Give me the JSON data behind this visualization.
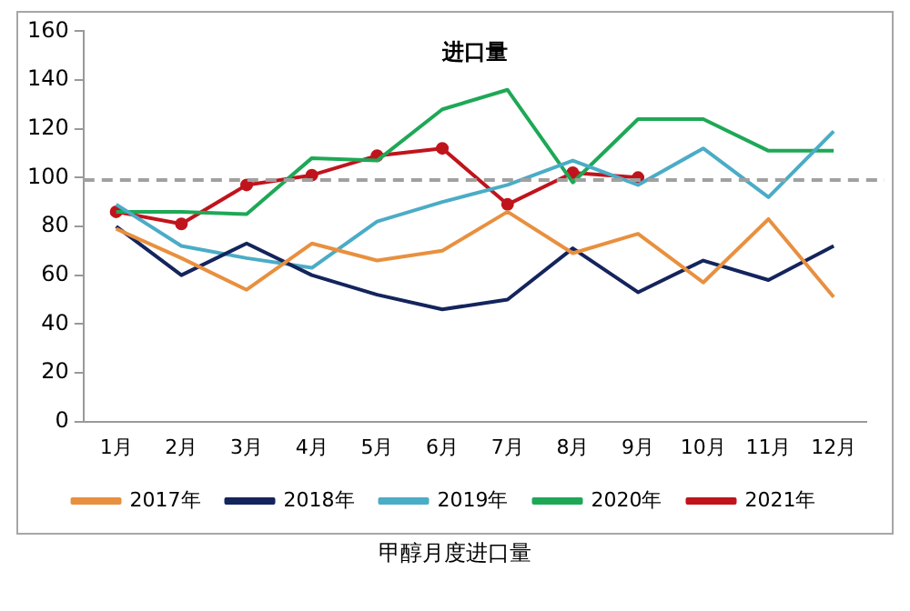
{
  "chart_data": {
    "type": "line",
    "title": "进口量",
    "categories": [
      "1月",
      "2月",
      "3月",
      "4月",
      "5月",
      "6月",
      "7月",
      "8月",
      "9月",
      "10月",
      "11月",
      "12月"
    ],
    "series": [
      {
        "name": "2017年",
        "color": "#e8903f",
        "marker": "none",
        "values": [
          79,
          67,
          54,
          73,
          66,
          70,
          86,
          69,
          77,
          57,
          83,
          51
        ]
      },
      {
        "name": "2018年",
        "color": "#14245c",
        "marker": "none",
        "values": [
          80,
          60,
          73,
          60,
          52,
          46,
          50,
          71,
          53,
          66,
          58,
          72
        ]
      },
      {
        "name": "2019年",
        "color": "#4bacc6",
        "marker": "none",
        "values": [
          89,
          72,
          67,
          63,
          82,
          90,
          97,
          107,
          97,
          112,
          92,
          119
        ]
      },
      {
        "name": "2020年",
        "color": "#1ea856",
        "marker": "none",
        "values": [
          86,
          86,
          85,
          108,
          107,
          128,
          136,
          98,
          124,
          124,
          111,
          111
        ]
      },
      {
        "name": "2021年",
        "color": "#c0141c",
        "marker": "circle",
        "values": [
          86,
          81,
          97,
          101,
          109,
          112,
          89,
          102,
          100,
          null,
          null,
          null
        ]
      }
    ],
    "ylim": [
      0,
      160
    ],
    "yticks": [
      0,
      20,
      40,
      60,
      80,
      100,
      120,
      140,
      160
    ],
    "ref_lines": [
      {
        "axis": "y",
        "value": 99,
        "color": "#a0a0a0",
        "line_style": "dashed"
      }
    ],
    "grid": false,
    "legend": "bottom",
    "line_style": "solid",
    "annotations": [
      "甲醇月度进口量"
    ]
  }
}
